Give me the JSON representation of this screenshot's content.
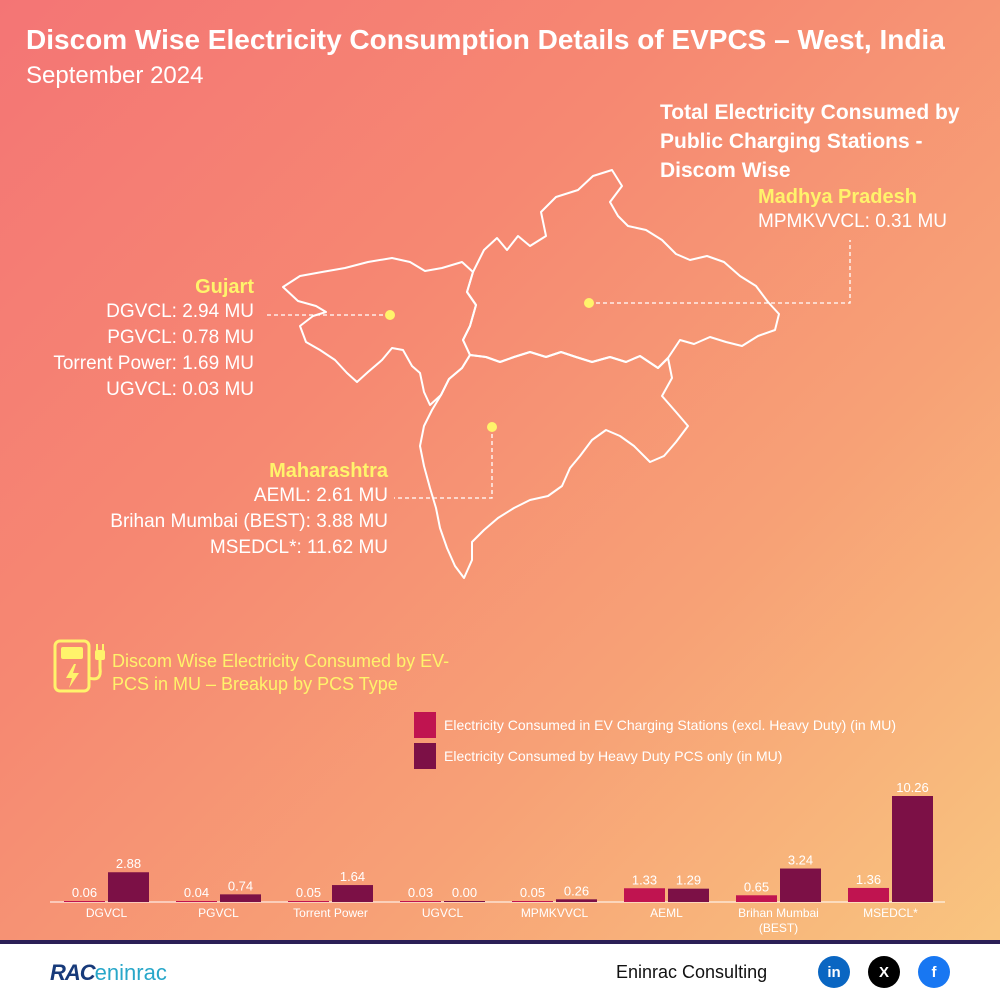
{
  "header": {
    "title": "Discom Wise Electricity Consumption Details of EVPCS – West, India",
    "subtitle": "September 2024"
  },
  "map_section": {
    "heading": "Total Electricity Consumed by Public Charging Stations - Discom Wise",
    "regions": [
      {
        "name": "Madhya Pradesh",
        "lines": [
          "MPMKVVCL: 0.31 MU"
        ]
      },
      {
        "name": "Gujart",
        "lines": [
          "DGVCL: 2.94 MU",
          "PGVCL: 0.78 MU",
          "Torrent Power: 1.69 MU",
          "UGVCL: 0.03 MU"
        ]
      },
      {
        "name": "Maharashtra",
        "lines": [
          "AEML: 2.61 MU",
          "Brihan Mumbai (BEST): 3.88 MU",
          "MSEDCL*: 11.62 MU"
        ]
      }
    ],
    "colors": {
      "region_name": "#fff36b",
      "marker": "#fff36b",
      "outline": "#ffffff"
    }
  },
  "breakup": {
    "title": "Discom Wise Electricity Consumed by EV-PCS in MU – Breakup by PCS Type",
    "icon": "ev-charger-icon"
  },
  "chart_data": {
    "type": "bar",
    "categories": [
      "DGVCL",
      "PGVCL",
      "Torrent Power",
      "UGVCL",
      "MPMKVVCL",
      "AEML",
      "Brihan Mumbai\n(BEST)",
      "MSEDCL*"
    ],
    "series": [
      {
        "name": "Electricity Consumed in EV Charging Stations (excl. Heavy Duty) (in MU)",
        "color": "#c01450",
        "values": [
          0.06,
          0.04,
          0.05,
          0.03,
          0.05,
          1.33,
          0.65,
          1.36
        ]
      },
      {
        "name": "Electricity Consumed by Heavy Duty PCS only (in MU)",
        "color": "#7c1046",
        "values": [
          2.88,
          0.74,
          1.64,
          0.0,
          0.26,
          1.29,
          3.24,
          10.26
        ]
      }
    ],
    "data_labels": true,
    "grid": false,
    "legend_position": "top"
  },
  "footer": {
    "brand": "Eninrac Consulting",
    "logo_main": "RAC",
    "logo_accent": "eninrac",
    "social": [
      {
        "icon": "linkedin-icon",
        "glyph": "in",
        "color": "#0a66c2"
      },
      {
        "icon": "x-icon",
        "glyph": "X",
        "color": "#000000"
      },
      {
        "icon": "facebook-icon",
        "glyph": "f",
        "color": "#1877f2"
      }
    ]
  }
}
